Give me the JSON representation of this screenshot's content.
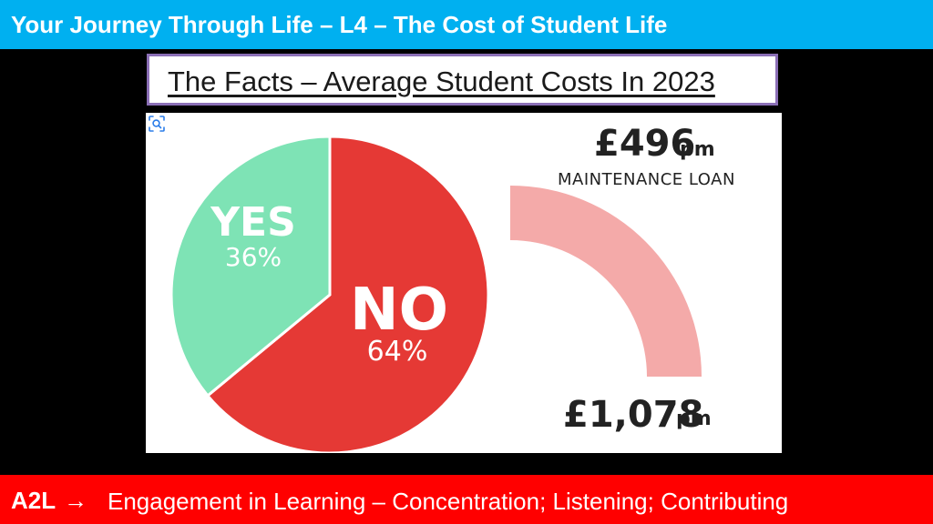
{
  "header": {
    "title": "Your Journey Through Life – L4 – The Cost of Student Life"
  },
  "subheader": {
    "title": "The Facts – Average Student Costs In 2023"
  },
  "figure": {
    "yes_label": "YES",
    "yes_percent": "36%",
    "no_label": "NO",
    "no_percent": "64%",
    "loan_amount": "£496",
    "loan_unit": "pm",
    "loan_caption": "MAINTENANCE LOAN",
    "cost_amount": "£1,078",
    "cost_unit": "pm",
    "lens_icon": "visual-search-icon"
  },
  "chart_data": [
    {
      "type": "pie",
      "categories": [
        "YES",
        "NO"
      ],
      "values": [
        36,
        64
      ],
      "colors": [
        "#7ee3b5",
        "#e53935"
      ]
    },
    {
      "type": "gauge",
      "values": [
        496,
        1078
      ],
      "labels": [
        "£496 pm",
        "£1,078 pm"
      ],
      "captions": [
        "MAINTENANCE LOAN",
        ""
      ],
      "colors": [
        "#f4aaa9"
      ]
    }
  ],
  "footer": {
    "lead": "A2L",
    "arrow_icon": "arrow-right-icon",
    "text": "Engagement in Learning – Concentration; Listening; Contributing"
  },
  "colors": {
    "header_bg": "#00b0f0",
    "footer_bg": "#ff0000",
    "subtitle_border": "#8b6fb6",
    "yes": "#7ee3b5",
    "no": "#e53935",
    "gauge": "#f4aaa9"
  }
}
